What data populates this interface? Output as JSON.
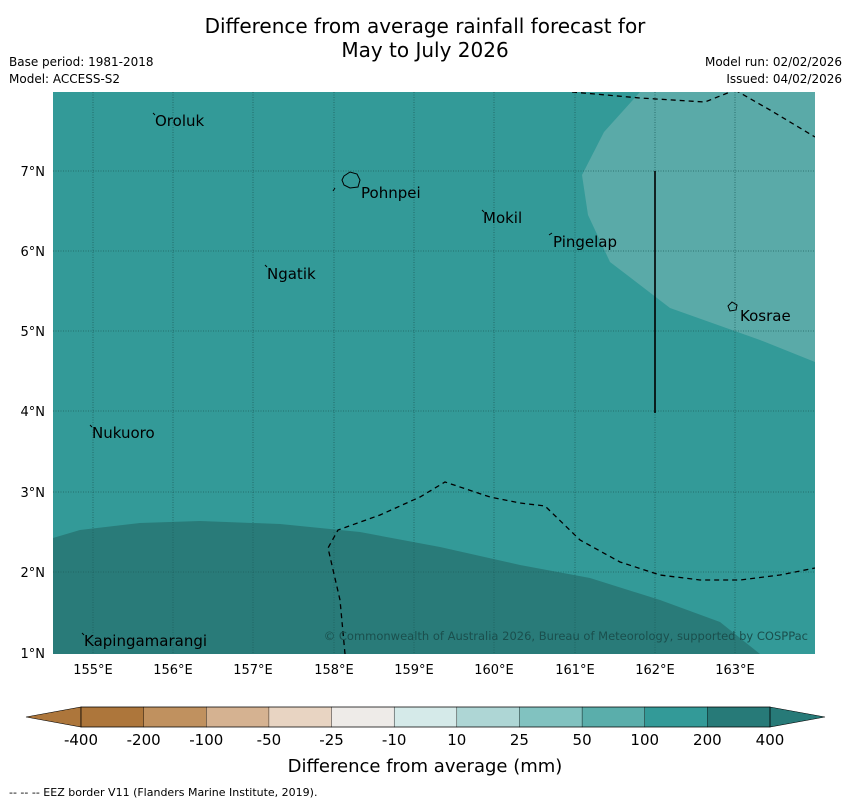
{
  "title": {
    "line1": "Difference from average rainfall forecast for",
    "line2": "May to July 2026"
  },
  "meta": {
    "base_period": "Base period: 1981-2018",
    "model": "Model: ACCESS-S2",
    "model_run": "Model run: 02/02/2026",
    "issued": "Issued: 04/02/2026"
  },
  "map": {
    "lon_labels": [
      "155°E",
      "156°E",
      "157°E",
      "158°E",
      "159°E",
      "160°E",
      "161°E",
      "162°E",
      "163°E"
    ],
    "lat_labels": [
      "7°N",
      "6°N",
      "5°N",
      "4°N",
      "3°N",
      "2°N",
      "1°N"
    ],
    "places": {
      "oroluk": "Oroluk",
      "pohnpei": "Pohnpei",
      "mokil": "Mokil",
      "pingelap": "Pingelap",
      "ngatik": "Ngatik",
      "kosrae": "Kosrae",
      "nukuoro": "Nukuoro",
      "kapingamarangi": "Kapingamarangi"
    },
    "copyright": "© Commonwealth of Australia 2026, Bureau of Meteorology, supported by COSPPac",
    "colors": {
      "base": "#339a98",
      "light": "#5aaaa8",
      "dark": "#297b79"
    }
  },
  "colorbar": {
    "ticks": [
      "-400",
      "-200",
      "-100",
      "-50",
      "-25",
      "-10",
      "10",
      "25",
      "50",
      "100",
      "200",
      "400"
    ],
    "colors": [
      "#ad763b",
      "#c0915f",
      "#d5b291",
      "#e8d4c2",
      "#eeebe8",
      "#ffffff",
      "#d5eae9",
      "#aed6d5",
      "#81c2c0",
      "#5aaeab",
      "#339a98",
      "#277a78"
    ],
    "title": "Difference from average (mm)"
  },
  "footnote": "--  --  -- EEZ border V11 (Flanders Marine Institute, 2019)."
}
